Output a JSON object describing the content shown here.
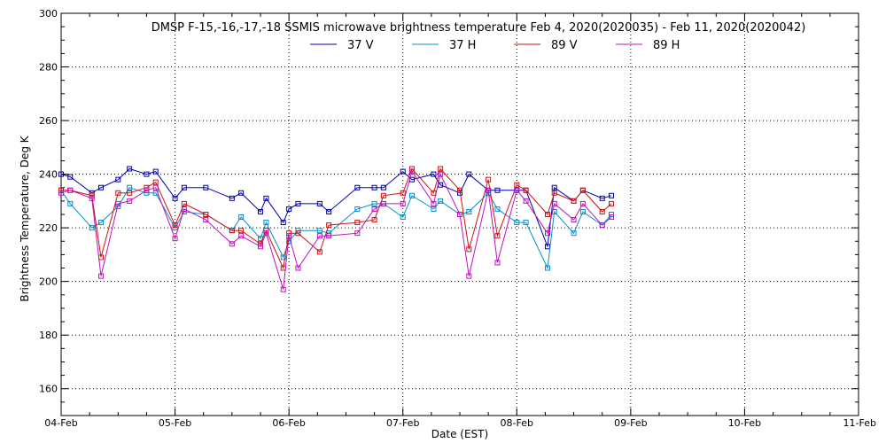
{
  "chart_data": {
    "type": "line",
    "title": "DMSP F-15,-16,-17,-18 SSMIS microwave brightness temperature Feb  4, 2020(2020035) - Feb 11, 2020(2020042)",
    "xlabel": "Date (EST)",
    "ylabel": "Brightness Temperature, Deg K",
    "xlim": [
      0,
      7
    ],
    "ylim": [
      150,
      300
    ],
    "x_ticks": [
      0,
      1,
      2,
      3,
      4,
      5,
      6,
      7
    ],
    "x_tick_labels": [
      "04-Feb",
      "05-Feb",
      "06-Feb",
      "07-Feb",
      "08-Feb",
      "09-Feb",
      "10-Feb",
      "11-Feb"
    ],
    "y_ticks": [
      160,
      180,
      200,
      220,
      240,
      260,
      280,
      300
    ],
    "y_tick_labels": [
      "160",
      "180",
      "200",
      "220",
      "240",
      "260",
      "280",
      "300"
    ],
    "grid": true,
    "legend_position": "top-center",
    "series": [
      {
        "name": "37 V",
        "color": "#0000b0",
        "x": [
          0.0,
          0.08,
          0.27,
          0.35,
          0.5,
          0.6,
          0.75,
          0.83,
          1.0,
          1.08,
          1.27,
          1.5,
          1.58,
          1.75,
          1.8,
          1.95,
          2.0,
          2.08,
          2.27,
          2.35,
          2.6,
          2.75,
          2.83,
          3.0,
          3.08,
          3.27,
          3.33,
          3.5,
          3.58,
          3.75,
          3.83,
          4.0,
          4.08,
          4.27,
          4.33,
          4.5,
          4.58,
          4.75,
          4.83
        ],
        "values": [
          240,
          239,
          233,
          235,
          238,
          242,
          240,
          241,
          231,
          235,
          235,
          231,
          233,
          226,
          231,
          222,
          227,
          229,
          229,
          226,
          235,
          235,
          235,
          241,
          238,
          240,
          236,
          233,
          240,
          234,
          234,
          234,
          234,
          213,
          235,
          230,
          234,
          231,
          232
        ]
      },
      {
        "name": "37 H",
        "color": "#0090d0",
        "x": [
          0.0,
          0.08,
          0.27,
          0.35,
          0.5,
          0.6,
          0.75,
          0.83,
          1.0,
          1.08,
          1.27,
          1.5,
          1.58,
          1.75,
          1.8,
          1.95,
          2.0,
          2.08,
          2.27,
          2.35,
          2.6,
          2.75,
          2.83,
          3.0,
          3.08,
          3.27,
          3.33,
          3.5,
          3.58,
          3.75,
          3.83,
          4.0,
          4.08,
          4.27,
          4.33,
          4.5,
          4.58,
          4.75,
          4.83
        ],
        "values": [
          234,
          229,
          220,
          222,
          228,
          235,
          233,
          233,
          220,
          226,
          225,
          219,
          224,
          216,
          222,
          209,
          215,
          219,
          219,
          218,
          227,
          229,
          229,
          224,
          232,
          227,
          230,
          225,
          226,
          233,
          227,
          222,
          222,
          205,
          226,
          218,
          226,
          221,
          225
        ]
      },
      {
        "name": "89 V",
        "color": "#d01010",
        "x": [
          0.0,
          0.08,
          0.27,
          0.35,
          0.5,
          0.6,
          0.75,
          0.83,
          1.0,
          1.08,
          1.27,
          1.5,
          1.58,
          1.75,
          1.8,
          1.95,
          2.0,
          2.08,
          2.27,
          2.35,
          2.6,
          2.75,
          2.83,
          3.0,
          3.08,
          3.27,
          3.33,
          3.5,
          3.58,
          3.75,
          3.83,
          4.0,
          4.08,
          4.27,
          4.33,
          4.5,
          4.58,
          4.75,
          4.83
        ],
        "values": [
          234,
          234,
          232,
          209,
          233,
          233,
          235,
          237,
          221,
          229,
          225,
          219,
          219,
          214,
          219,
          205,
          218,
          218,
          211,
          221,
          222,
          223,
          232,
          233,
          242,
          233,
          242,
          234,
          212,
          238,
          217,
          236,
          234,
          225,
          233,
          230,
          234,
          226,
          229
        ]
      },
      {
        "name": "89 H",
        "color": "#c010c0",
        "x": [
          0.0,
          0.08,
          0.27,
          0.35,
          0.5,
          0.6,
          0.75,
          0.83,
          1.0,
          1.08,
          1.27,
          1.5,
          1.58,
          1.75,
          1.8,
          1.95,
          2.0,
          2.08,
          2.27,
          2.35,
          2.6,
          2.75,
          2.83,
          3.0,
          3.08,
          3.27,
          3.33,
          3.5,
          3.58,
          3.75,
          3.83,
          4.0,
          4.08,
          4.27,
          4.33,
          4.5,
          4.58,
          4.75,
          4.83
        ],
        "values": [
          233,
          234,
          231,
          202,
          229,
          230,
          234,
          235,
          216,
          227,
          223,
          214,
          217,
          213,
          218,
          197,
          217,
          205,
          217,
          217,
          218,
          227,
          229,
          229,
          241,
          229,
          240,
          225,
          202,
          234,
          207,
          234,
          230,
          218,
          229,
          223,
          229,
          221,
          224
        ]
      }
    ]
  }
}
